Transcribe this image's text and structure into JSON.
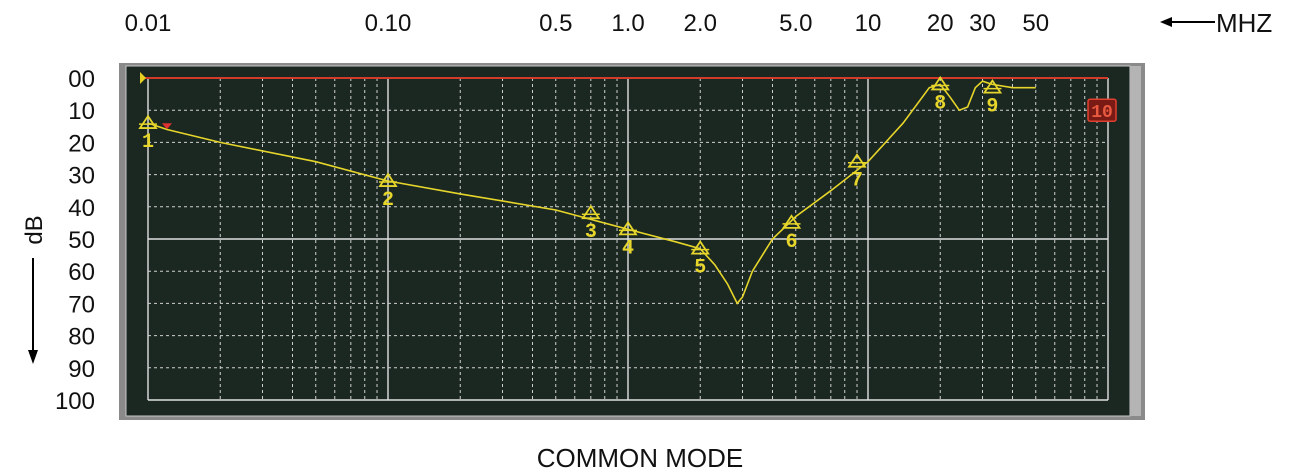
{
  "chart_data": {
    "type": "line",
    "title": "COMMON MODE",
    "x_unit_label": "MHZ",
    "y_axis_label": "dB",
    "x_scale": "log",
    "x_tick_labels": [
      {
        "value": 0.01,
        "label": "0.01"
      },
      {
        "value": 0.1,
        "label": "0.10"
      },
      {
        "value": 0.5,
        "label": "0.5"
      },
      {
        "value": 1.0,
        "label": "1.0"
      },
      {
        "value": 2.0,
        "label": "2.0"
      },
      {
        "value": 5.0,
        "label": "5.0"
      },
      {
        "value": 10,
        "label": "10"
      },
      {
        "value": 20,
        "label": "20"
      },
      {
        "value": 30,
        "label": "30"
      },
      {
        "value": 50,
        "label": "50"
      }
    ],
    "y_tick_labels": [
      "00",
      "10",
      "20",
      "30",
      "40",
      "50",
      "60",
      "70",
      "80",
      "90",
      "100"
    ],
    "xlim": [
      0.01,
      100
    ],
    "ylim": [
      0,
      100
    ],
    "y_inverted": true,
    "grid": true,
    "reference_line_db": 0,
    "series": [
      {
        "x": [
          0.01,
          0.012,
          0.02,
          0.05,
          0.1,
          0.2,
          0.5,
          1.0,
          1.6,
          2.0,
          2.3,
          2.6,
          2.85,
          3.0,
          3.3,
          4.0,
          5.0,
          7.0,
          10,
          14,
          18,
          20,
          22,
          24,
          26,
          28,
          30,
          33,
          40,
          50
        ],
        "y": [
          14,
          16,
          20,
          26,
          32,
          36,
          41,
          47,
          51,
          53,
          58,
          64,
          70,
          68,
          60,
          50,
          43,
          35,
          26,
          14,
          3,
          2,
          6,
          10,
          9,
          3,
          1,
          2,
          3,
          3
        ]
      }
    ],
    "markers": [
      {
        "label": "1",
        "x": 0.01,
        "y": 14
      },
      {
        "label": "2",
        "x": 0.1,
        "y": 32
      },
      {
        "label": "3",
        "x": 0.7,
        "y": 42
      },
      {
        "label": "4",
        "x": 1.0,
        "y": 47
      },
      {
        "label": "5",
        "x": 2.0,
        "y": 53
      },
      {
        "label": "6",
        "x": 4.8,
        "y": 45
      },
      {
        "label": "7",
        "x": 9.0,
        "y": 26
      },
      {
        "label": "8",
        "x": 20,
        "y": 2
      },
      {
        "label": "9",
        "x": 33,
        "y": 3
      },
      {
        "label": "10",
        "x": 90,
        "y": 10
      }
    ]
  }
}
